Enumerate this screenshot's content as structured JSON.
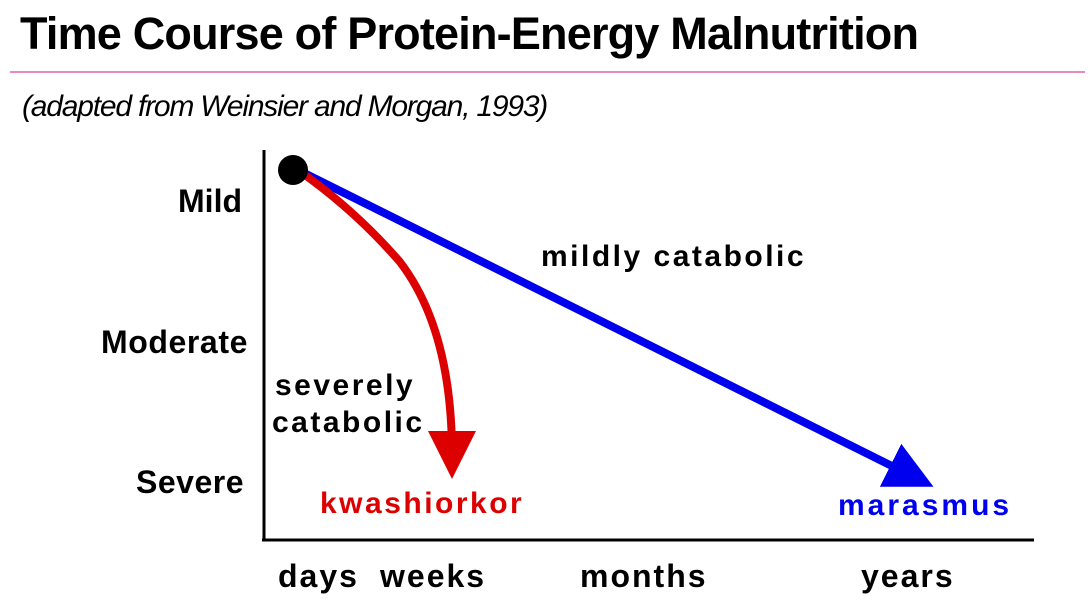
{
  "title": "Time Course of Protein-Energy Malnutrition",
  "subtitle": "(adapted from Weinsier and Morgan, 1993)",
  "y_axis": {
    "levels": [
      "Mild",
      "Moderate",
      "Severe"
    ]
  },
  "x_axis": {
    "periods": [
      "days",
      "weeks",
      "months",
      "years"
    ]
  },
  "paths": {
    "fast": {
      "rate_label_line1": "severely",
      "rate_label_line2": "catabolic",
      "outcome": "kwashiorkor",
      "color": "#dd0000"
    },
    "slow": {
      "rate_label": "mildly catabolic",
      "outcome": "marasmus",
      "color": "#0000ee"
    }
  },
  "colors": {
    "rule": "#e889c0",
    "start_dot": "#000000",
    "axes": "#000000"
  }
}
